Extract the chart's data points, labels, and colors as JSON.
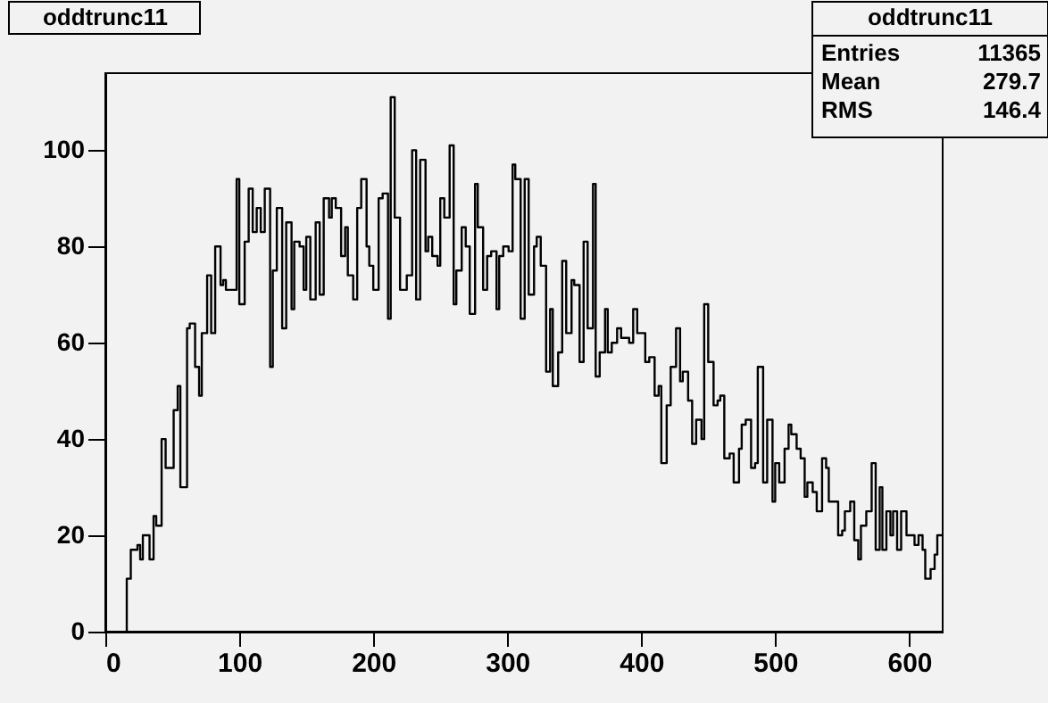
{
  "chart_data": {
    "type": "histogram",
    "title": "oddtrunc11",
    "bins": [
      16,
      19,
      24,
      26,
      28,
      33,
      36,
      38,
      42,
      45,
      51,
      54,
      56,
      61,
      63,
      67,
      70,
      72,
      76,
      79,
      82,
      86,
      88,
      90,
      98,
      100,
      104,
      107,
      110,
      113,
      116,
      119,
      123,
      125,
      128,
      132,
      135,
      139,
      141,
      145,
      148,
      150,
      153,
      157,
      160,
      163,
      167,
      169,
      172,
      176,
      179,
      181,
      185,
      188,
      191,
      195,
      197,
      200,
      204,
      207,
      211,
      213,
      216,
      220,
      225,
      229,
      232,
      235,
      239,
      241,
      244,
      248,
      250,
      253,
      257,
      260,
      262,
      266,
      269,
      272,
      276,
      278,
      282,
      285,
      288,
      292,
      294,
      297,
      301,
      304,
      306,
      310,
      313,
      316,
      320,
      322,
      325,
      329,
      332,
      334,
      338,
      341,
      344,
      348,
      350,
      354,
      357,
      360,
      364,
      366,
      369,
      373,
      375,
      378,
      382,
      385,
      391,
      394,
      397,
      403,
      406,
      410,
      413,
      415,
      419,
      422,
      426,
      429,
      431,
      435,
      438,
      441,
      445,
      447,
      450,
      454,
      457,
      459,
      462,
      466,
      469,
      473,
      475,
      478,
      482,
      485,
      487,
      491,
      494,
      498,
      500,
      503,
      507,
      510,
      512,
      516,
      519,
      522,
      524,
      528,
      531,
      535,
      538,
      540,
      547,
      550,
      552,
      556,
      559,
      562,
      564,
      568,
      572,
      575,
      578,
      580,
      583,
      586,
      588,
      591,
      594,
      598,
      604,
      607,
      610,
      612,
      616,
      619,
      621,
      625
    ],
    "values": [
      11,
      17,
      18,
      15,
      20,
      15,
      24,
      22,
      40,
      34,
      46,
      51,
      30,
      63,
      64,
      55,
      49,
      62,
      74,
      62,
      80,
      72,
      73,
      71,
      94,
      68,
      81,
      92,
      83,
      88,
      83,
      92,
      55,
      75,
      88,
      63,
      85,
      67,
      81,
      80,
      71,
      82,
      69,
      85,
      70,
      90,
      86,
      90,
      88,
      78,
      84,
      74,
      69,
      88,
      94,
      80,
      76,
      71,
      90,
      91,
      65,
      111,
      86,
      71,
      74,
      100,
      69,
      98,
      79,
      82,
      78,
      76,
      90,
      86,
      101,
      68,
      75,
      84,
      80,
      66,
      93,
      84,
      71,
      78,
      79,
      67,
      78,
      80,
      79,
      97,
      94,
      65,
      94,
      70,
      80,
      82,
      76,
      54,
      67,
      51,
      58,
      77,
      62,
      73,
      72,
      56,
      81,
      63,
      93,
      53,
      58,
      67,
      58,
      60,
      63,
      61,
      60,
      67,
      62,
      56,
      57,
      49,
      51,
      35,
      47,
      55,
      63,
      52,
      54,
      48,
      39,
      44,
      40,
      68,
      56,
      47,
      48,
      49,
      36,
      37,
      31,
      38,
      43,
      44,
      34,
      35,
      55,
      31,
      44,
      27,
      35,
      31,
      38,
      43,
      41,
      38,
      36,
      28,
      31,
      29,
      25,
      36,
      34,
      27,
      20,
      21,
      25,
      27,
      19,
      15,
      22,
      25,
      35,
      17,
      30,
      17,
      25,
      20,
      25,
      17,
      25,
      20,
      18,
      20,
      17,
      11,
      13,
      16,
      20
    ],
    "color": "#000000",
    "xlim": [
      0,
      625
    ],
    "xticks": [
      0,
      100,
      200,
      300,
      400,
      500,
      600
    ],
    "ylim": [
      0,
      116
    ],
    "yticks": [
      0,
      20,
      40,
      60,
      80,
      100
    ],
    "annotations": [
      "Entries 11365",
      "Mean 279.7",
      "RMS 146.4"
    ],
    "grid": false
  }
}
